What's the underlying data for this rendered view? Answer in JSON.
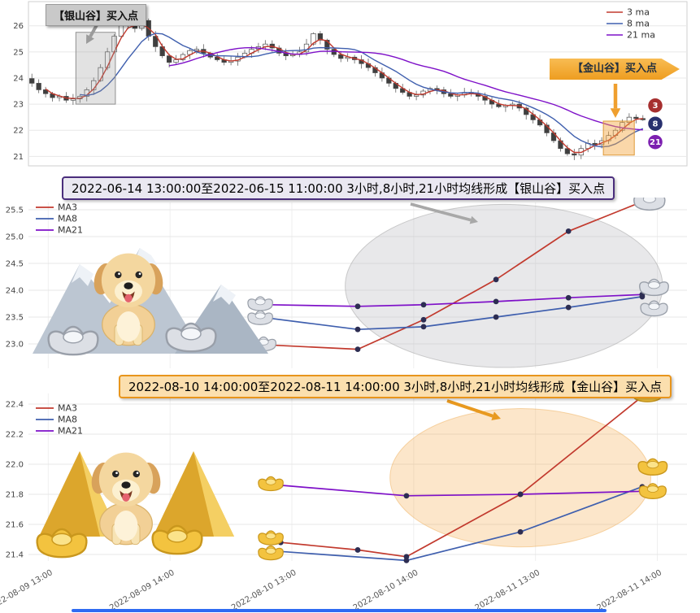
{
  "colors": {
    "ma3": "#c23a2e",
    "ma8": "#3f5fae",
    "ma21": "#7e10c8",
    "silver_accent": "#9a9a9a",
    "gold_accent": "#ee9d20",
    "scrollbar": "#2f6bf2"
  },
  "decorations": {
    "middle": [
      "mountain-image",
      "dog-image",
      "silver-ingot-icon"
    ],
    "bottom": [
      "pyramid-image",
      "dog-image",
      "gold-ingot-icon"
    ]
  },
  "chart_data": [
    {
      "id": "top",
      "type": "candlestick",
      "silver_label": "【银山谷】买入点",
      "gold_label": "【金山谷】买入点",
      "ylim": [
        20.7,
        26.8
      ],
      "yticks": [
        21,
        22,
        23,
        24,
        25,
        26
      ],
      "legend": [
        {
          "label": "3 ma",
          "color": "#c23a2e"
        },
        {
          "label": "8 ma",
          "color": "#3f5fae"
        },
        {
          "label": "21 ma",
          "color": "#7e10c8"
        }
      ],
      "ma": [
        {
          "window": 3,
          "color": "#c23a2e"
        },
        {
          "window": 8,
          "color": "#3f5fae"
        },
        {
          "window": 21,
          "color": "#7e10c8"
        }
      ],
      "closes": [
        23.8,
        23.55,
        23.4,
        23.25,
        23.3,
        23.15,
        23.2,
        23.3,
        23.55,
        23.9,
        24.4,
        25.0,
        25.6,
        26.0,
        26.15,
        25.9,
        26.2,
        25.6,
        25.2,
        24.85,
        24.6,
        24.7,
        24.9,
        25.05,
        25.1,
        24.95,
        24.8,
        24.7,
        24.6,
        24.65,
        24.8,
        24.95,
        25.1,
        25.2,
        25.3,
        25.15,
        24.95,
        24.85,
        24.9,
        25.0,
        25.3,
        25.7,
        25.45,
        25.1,
        24.9,
        24.75,
        24.8,
        24.7,
        24.55,
        24.4,
        24.2,
        24.0,
        23.8,
        23.6,
        23.45,
        23.3,
        23.35,
        23.5,
        23.6,
        23.55,
        23.4,
        23.3,
        23.35,
        23.45,
        23.4,
        23.3,
        23.15,
        23.0,
        22.9,
        22.95,
        23.0,
        22.85,
        22.6,
        22.4,
        22.2,
        21.9,
        21.6,
        21.3,
        21.1,
        21.05,
        21.3,
        21.5,
        21.45,
        21.6,
        21.8,
        22.0,
        22.3,
        22.5,
        22.45,
        22.4
      ],
      "end_badges": [
        {
          "label": "3",
          "at": 22.95,
          "color": "#a62f2f"
        },
        {
          "label": "8",
          "at": 22.25,
          "color": "#28306e"
        },
        {
          "label": "21",
          "at": 21.55,
          "color": "#7c1fb0"
        }
      ],
      "silver_box": {
        "x0": 0.072,
        "x1": 0.132,
        "y0": 23.0,
        "y1": 25.75
      },
      "gold_box": {
        "x0": 0.873,
        "x1": 0.92,
        "y0": 21.05,
        "y1": 22.35
      }
    },
    {
      "id": "silver_valley",
      "type": "line",
      "banner": "2022-06-14 13:00:00至2022-06-15 11:00:00 3小时,8小时,21小时均线形成【银山谷】买入点",
      "yticks": [
        23.0,
        23.5,
        24.0,
        24.5,
        25.0,
        25.5
      ],
      "xticks": [
        0.03,
        0.215,
        0.4,
        0.585,
        0.77,
        0.955
      ],
      "series": [
        {
          "name": "MA3",
          "color": "#c23a2e",
          "points": [
            [
              0.365,
              22.98
            ],
            [
              0.5,
              22.9
            ],
            [
              0.6,
              23.45
            ],
            [
              0.71,
              24.2
            ],
            [
              0.82,
              25.1
            ],
            [
              0.932,
              25.65
            ]
          ]
        },
        {
          "name": "MA8",
          "color": "#3f5fae",
          "points": [
            [
              0.365,
              23.48
            ],
            [
              0.5,
              23.27
            ],
            [
              0.6,
              23.32
            ],
            [
              0.71,
              23.5
            ],
            [
              0.82,
              23.68
            ],
            [
              0.932,
              23.88
            ]
          ]
        },
        {
          "name": "MA21",
          "color": "#7e10c8",
          "points": [
            [
              0.365,
              23.73
            ],
            [
              0.5,
              23.7
            ],
            [
              0.6,
              23.73
            ],
            [
              0.71,
              23.79
            ],
            [
              0.82,
              23.86
            ],
            [
              0.932,
              23.92
            ]
          ]
        }
      ],
      "ellipse": {
        "cx": 0.722,
        "cy": 24.08,
        "rx": 0.241,
        "ry": 1.52,
        "fill": "rgba(190,190,195,0.35)",
        "stroke": "rgba(160,160,160,0.5)"
      },
      "ingots": [
        [
          0.352,
          23.72,
          1.2
        ],
        [
          0.352,
          23.46,
          1.2
        ],
        [
          0.357,
          22.97,
          1.2
        ],
        [
          0.943,
          25.62,
          1.5
        ],
        [
          0.95,
          24.02,
          1.4
        ],
        [
          0.95,
          23.63,
          1.3
        ]
      ],
      "ingot_style": "silver"
    },
    {
      "id": "gold_valley",
      "type": "line",
      "banner": "2022-08-10 14:00:00至2022-08-11 14:00:00 3小时,8小时,21小时均线形成【金山谷】买入点",
      "yticks": [
        21.4,
        21.6,
        21.8,
        22.0,
        22.2,
        22.4
      ],
      "xticks": [
        0.03,
        0.215,
        0.4,
        0.585,
        0.77,
        0.955
      ],
      "xlabels": [
        "2022-08-09 13:00",
        "2022-08-09 14:00",
        "2022-08-10 13:00",
        "2022-08-10 14:00",
        "2022-08-11 13:00",
        "2022-08-11 14:00"
      ],
      "series": [
        {
          "name": "MA3",
          "color": "#c23a2e",
          "points": [
            [
              0.383,
              21.48
            ],
            [
              0.5,
              21.43
            ],
            [
              0.574,
              21.385
            ],
            [
              0.747,
              21.8
            ],
            [
              0.932,
              22.45
            ]
          ]
        },
        {
          "name": "MA8",
          "color": "#3f5fae",
          "points": [
            [
              0.383,
              21.42
            ],
            [
              0.574,
              21.36
            ],
            [
              0.747,
              21.55
            ],
            [
              0.932,
              21.85
            ]
          ]
        },
        {
          "name": "MA21",
          "color": "#7e10c8",
          "points": [
            [
              0.383,
              21.86
            ],
            [
              0.574,
              21.79
            ],
            [
              0.747,
              21.8
            ],
            [
              0.932,
              21.82
            ]
          ]
        }
      ],
      "ellipse": {
        "cx": 0.747,
        "cy": 21.91,
        "rx": 0.198,
        "ry": 0.46,
        "fill": "rgba(243,166,64,0.28)",
        "stroke": "rgba(235,160,60,0.4)"
      },
      "ingots": [
        [
          0.368,
          21.86,
          1.2
        ],
        [
          0.368,
          21.5,
          1.2
        ],
        [
          0.368,
          21.4,
          1.2
        ],
        [
          0.94,
          22.46,
          1.5
        ],
        [
          0.948,
          21.97,
          1.4
        ],
        [
          0.948,
          21.81,
          1.3
        ]
      ],
      "ingot_style": "gold"
    }
  ]
}
